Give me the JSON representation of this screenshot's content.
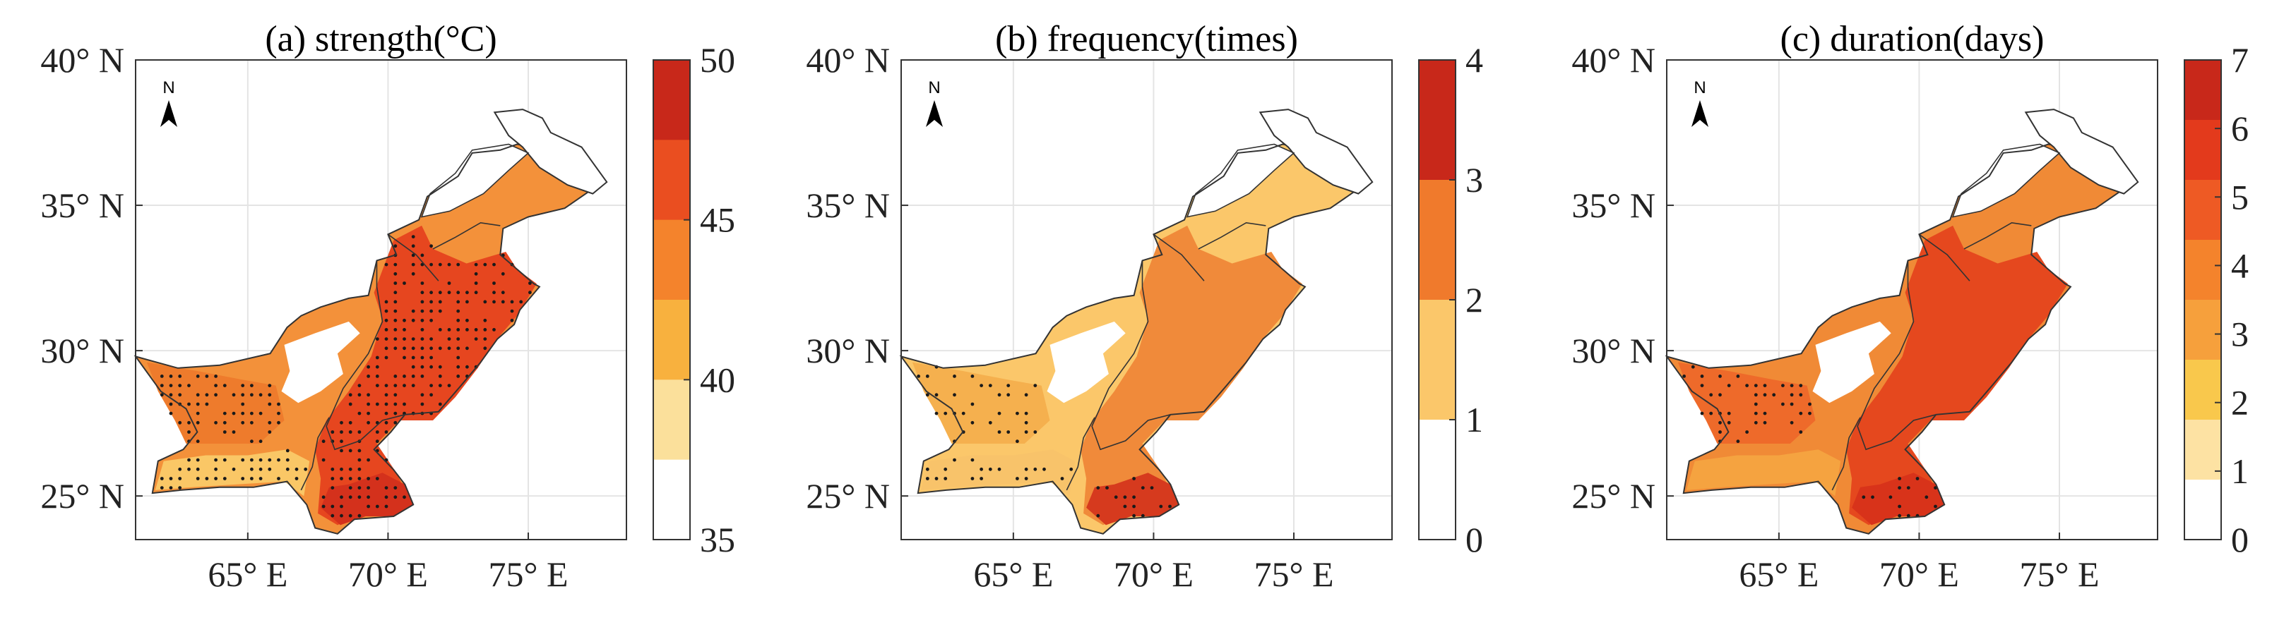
{
  "figure": {
    "panels": [
      {
        "id": "a",
        "title": "(a) strength(°C)",
        "yticks": [
          "40° N",
          "35° N",
          "30° N",
          "25° N"
        ],
        "xticks": [
          "65° E",
          "70° E",
          "75° E"
        ],
        "north_label": "N",
        "colorbar": {
          "ticks": [
            "50",
            "45",
            "40",
            "35"
          ],
          "colors": [
            "#c8281a",
            "#ea4e20",
            "#f4832c",
            "#f8b13e",
            "#fbe09b",
            "#ffffff"
          ]
        },
        "fills": [
          "#ee7b2c",
          "#f3913a",
          "#fac766",
          "#e6461f",
          "#d4311c"
        ]
      },
      {
        "id": "b",
        "title": "(b) frequency(times)",
        "yticks": [
          "40° N",
          "35° N",
          "30° N",
          "25° N"
        ],
        "xticks": [
          "65° E",
          "70° E",
          "75° E"
        ],
        "north_label": "N",
        "colorbar": {
          "ticks": [
            "4",
            "3",
            "2",
            "1",
            "0"
          ],
          "colors": [
            "#c8281a",
            "#f07a2c",
            "#fbc76a",
            "#ffffff"
          ]
        },
        "fills": [
          "#f5b04e",
          "#fbc76a",
          "#f8c36a",
          "#f08a3a",
          "#d63a1e"
        ]
      },
      {
        "id": "c",
        "title": "(c) duration(days)",
        "yticks": [
          "40° N",
          "35° N",
          "30° N",
          "25° N"
        ],
        "xticks": [
          "65° E",
          "70° E",
          "75° E"
        ],
        "north_label": "N",
        "colorbar": {
          "ticks": [
            "7",
            "6",
            "5",
            "4",
            "3",
            "2",
            "1",
            "0"
          ],
          "colors": [
            "#c8281a",
            "#e33a1c",
            "#ee5a24",
            "#f4832c",
            "#f6a03c",
            "#f9c84c",
            "#fde2a3",
            "#ffffff"
          ]
        },
        "fills": [
          "#ee6a2a",
          "#f08a36",
          "#f5a340",
          "#e5481e",
          "#d8331a"
        ]
      }
    ]
  }
}
